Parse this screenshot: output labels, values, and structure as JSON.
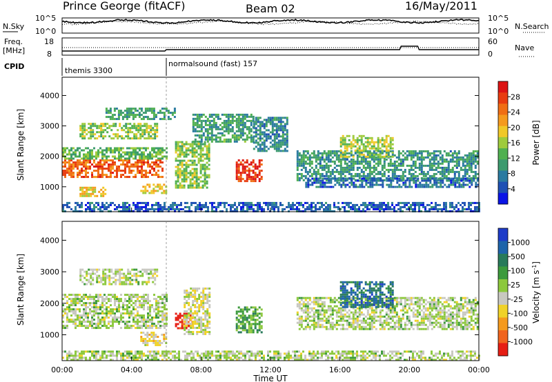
{
  "header": {
    "station": "Prince George (fitACF)",
    "beam": "Beam 02",
    "date": "16/May/2011"
  },
  "strip_sky": {
    "label": "N.Sky",
    "right_label": "N.Search",
    "tick_labels_left": [
      "10^5",
      "10^0"
    ],
    "tick_labels_right": [
      "10^5",
      "10^0"
    ]
  },
  "strip_freq": {
    "label_line1": "Freq.",
    "label_line2": "[MHz]",
    "right_label": "Nave",
    "tick_labels_left": [
      "18",
      "8"
    ],
    "tick_labels_right": [
      "60",
      "0"
    ]
  },
  "strip_cpid": {
    "label": "CPID",
    "modes": [
      "themis 3300",
      "normalsound (fast) 157"
    ],
    "switch_time_hours": 6.0
  },
  "panel_power": {
    "ylabel": "Slant Range [km]",
    "yticks": [
      "4000",
      "3000",
      "2000",
      "1000"
    ],
    "colorbar_label": "Power [dB]",
    "colorbar_ticks": [
      "28",
      "24",
      "20",
      "16",
      "12",
      "8",
      "4"
    ],
    "colors": [
      "#0a14e6",
      "#1e50b4",
      "#2a7aa0",
      "#3c9a6e",
      "#50b050",
      "#9ecb3c",
      "#f0c828",
      "#f59a1e",
      "#f06e14",
      "#e83c10",
      "#dc1414"
    ]
  },
  "panel_velocity": {
    "ylabel": "Slant Range [km]",
    "yticks": [
      "4000",
      "3000",
      "2000",
      "1000"
    ],
    "colorbar_label": "Velocity [m s",
    "colorbar_label_sup": "-1",
    "colorbar_label_end": "]",
    "colorbar_ticks": [
      "1000",
      "500",
      "100",
      "25",
      "-25",
      "-100",
      "-500",
      "-1000"
    ],
    "colors": [
      "#1e3cc8",
      "#1e64aa",
      "#287a5a",
      "#3c9a3c",
      "#8cc83c",
      "#c8c8c0",
      "#f0d228",
      "#f59a1e",
      "#f0641e",
      "#e61e14"
    ]
  },
  "x_axis": {
    "label": "Time UT",
    "ticks": [
      "00:00",
      "04:00",
      "08:00",
      "12:00",
      "16:00",
      "20:00",
      "00:00"
    ]
  },
  "chart_data": {
    "type": "heatmap",
    "title": "Prince George (fitACF)",
    "subtitle": "Beam 02",
    "date": "16/May/2011",
    "x_range_hours": [
      0,
      24
    ],
    "y_range_km": [
      180,
      4600
    ],
    "xlabel": "Time UT",
    "ylabel": "Slant Range [km]",
    "series": [
      {
        "name": "Power [dB]",
        "range": [
          0,
          30
        ],
        "regions": [
          {
            "t": [
              0.0,
              5.8
            ],
            "r": [
              1300,
              1900
            ],
            "value": 24
          },
          {
            "t": [
              0.0,
              6.0
            ],
            "r": [
              1900,
              2300
            ],
            "value": 12
          },
          {
            "t": [
              1.0,
              5.5
            ],
            "r": [
              2600,
              3100
            ],
            "value": 14
          },
          {
            "t": [
              2.5,
              6.5
            ],
            "r": [
              3200,
              3600
            ],
            "value": 10
          },
          {
            "t": [
              1.0,
              2.5
            ],
            "r": [
              700,
              1000
            ],
            "value": 18
          },
          {
            "t": [
              4.5,
              6.0
            ],
            "r": [
              800,
              1100
            ],
            "value": 18
          },
          {
            "t": [
              6.5,
              8.5
            ],
            "r": [
              1000,
              2500
            ],
            "value": 14
          },
          {
            "t": [
              7.5,
              11.0
            ],
            "r": [
              2500,
              3400
            ],
            "value": 10
          },
          {
            "t": [
              10.0,
              11.5
            ],
            "r": [
              1200,
              1900
            ],
            "value": 27
          },
          {
            "t": [
              11.0,
              13.0
            ],
            "r": [
              2200,
              3300
            ],
            "value": 8
          },
          {
            "t": [
              13.5,
              23.9
            ],
            "r": [
              1200,
              2200
            ],
            "value": 9
          },
          {
            "t": [
              16.0,
              19.0
            ],
            "r": [
              2000,
              2700
            ],
            "value": 15
          },
          {
            "t": [
              14.0,
              23.9
            ],
            "r": [
              1000,
              1300
            ],
            "value": 6
          },
          {
            "t": [
              0.0,
              24.0
            ],
            "r": [
              200,
              500
            ],
            "value": 5
          }
        ]
      },
      {
        "name": "Velocity [m s^-1]",
        "range": [
          -1000,
          1000
        ],
        "regions": [
          {
            "t": [
              0.0,
              6.0
            ],
            "r": [
              1200,
              2300
            ],
            "value": 0
          },
          {
            "t": [
              1.0,
              5.5
            ],
            "r": [
              2600,
              3100
            ],
            "value": 0
          },
          {
            "t": [
              4.5,
              6.0
            ],
            "r": [
              700,
              1100
            ],
            "value": -200
          },
          {
            "t": [
              6.5,
              7.5
            ],
            "r": [
              1200,
              1700
            ],
            "value": -1000
          },
          {
            "t": [
              7.0,
              8.5
            ],
            "r": [
              1000,
              2500
            ],
            "value": -150
          },
          {
            "t": [
              10.0,
              11.5
            ],
            "r": [
              1100,
              1900
            ],
            "value": 300
          },
          {
            "t": [
              13.5,
              23.9
            ],
            "r": [
              1200,
              2200
            ],
            "value": 0
          },
          {
            "t": [
              16.0,
              19.0
            ],
            "r": [
              1900,
              2700
            ],
            "value": 600
          },
          {
            "t": [
              0.0,
              24.0
            ],
            "r": [
              200,
              500
            ],
            "value": 0
          }
        ]
      }
    ]
  }
}
